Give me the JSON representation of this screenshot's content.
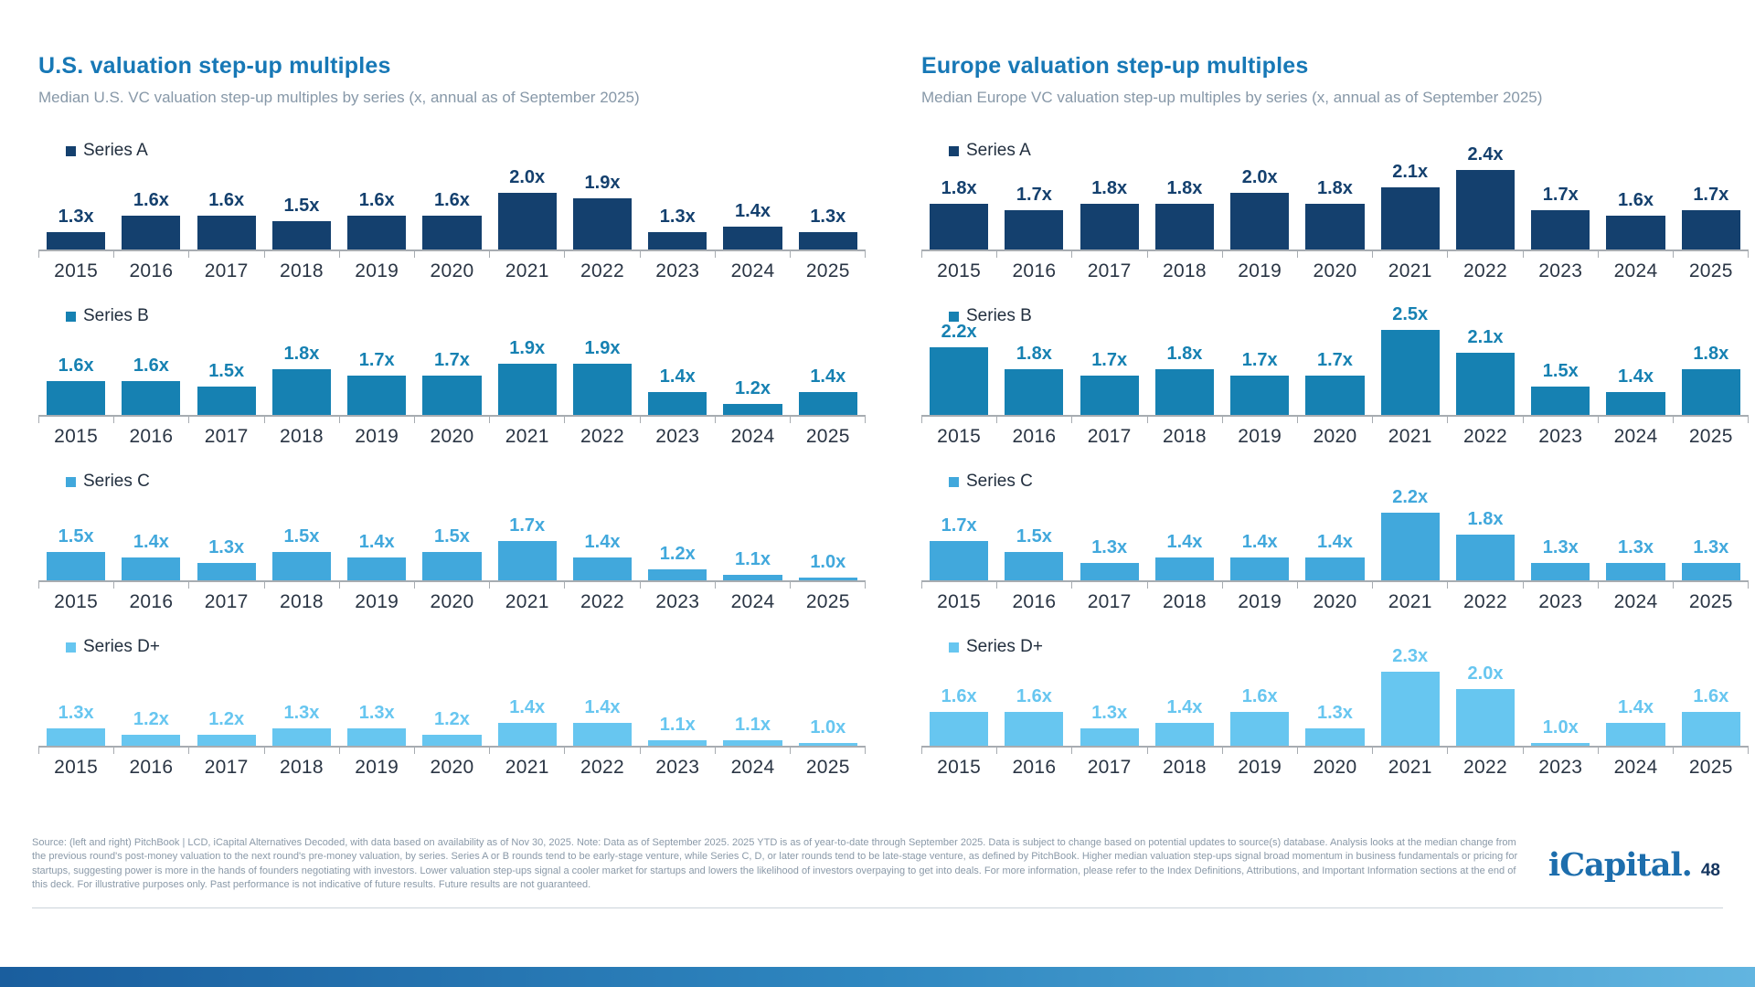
{
  "slide": {
    "footer": {
      "source_text": "Source: (left and right) PitchBook | LCD, iCapital Alternatives Decoded, with data based on availability as of Nov 30, 2025. Note: Data as of September 2025. 2025 YTD is as of year-to-date through September 2025. Data is subject to change based on potential updates to source(s) database. Analysis looks at the median change from the previous round's post-money valuation to the next round's pre-money valuation, by series. Series A or B rounds tend to be early-stage venture, while Series C, D, or later rounds tend to be late-stage venture, as defined by PitchBook. Higher median valuation step-ups signal broad momentum in business fundamentals or pricing for startups, suggesting power is more in the hands of founders negotiating with investors. Lower valuation step-ups signal a cooler market for startups and lowers the likelihood of investors overpaying to get into deals. For more information, please refer to the Index Definitions, Attributions, and Important Information sections at the end of this deck. For illustrative purposes only. Past performance is not indicative of future results. Future results are not guaranteed."
    },
    "logo": {
      "text": "iCapital",
      "dot": ".",
      "page_number": "48"
    },
    "colors": {
      "title_blue": "#1778B6",
      "subtitle_gray": "#8798A8",
      "axis_gray": "#A7ACB1",
      "bottom_bar_start": "#1A5E9E",
      "bottom_bar_end": "#62B5E0"
    }
  },
  "chart_data": [
    {
      "type": "bar",
      "title": "U.S. valuation step-up multiples",
      "subtitle": "Median U.S. VC valuation step-up multiples by series (x, annual as of September 2025)",
      "categories": [
        "2015",
        "2016",
        "2017",
        "2018",
        "2019",
        "2020",
        "2021",
        "2022",
        "2023",
        "2024",
        "2025"
      ],
      "ylim": [
        1.0,
        2.6
      ],
      "value_suffix": "x",
      "legend_position": "top-left-per-series",
      "grid": false,
      "series": [
        {
          "name": "Series A",
          "color": "#14406E",
          "values": [
            1.3,
            1.6,
            1.6,
            1.5,
            1.6,
            1.6,
            2.0,
            1.9,
            1.3,
            1.4,
            1.3
          ],
          "labels": [
            "1.3x",
            "1.6x",
            "1.6x",
            "1.5x",
            "1.6x",
            "1.6x",
            "2.0x",
            "1.9x",
            "1.3x",
            "1.4x",
            "1.3x"
          ]
        },
        {
          "name": "Series B",
          "color": "#1681B2",
          "values": [
            1.6,
            1.6,
            1.5,
            1.8,
            1.7,
            1.7,
            1.9,
            1.9,
            1.4,
            1.2,
            1.4
          ],
          "labels": [
            "1.6x",
            "1.6x",
            "1.5x",
            "1.8x",
            "1.7x",
            "1.7x",
            "1.9x",
            "1.9x",
            "1.4x",
            "1.2x",
            "1.4x"
          ]
        },
        {
          "name": "Series C",
          "color": "#41A8DC",
          "values": [
            1.5,
            1.4,
            1.3,
            1.5,
            1.4,
            1.5,
            1.7,
            1.4,
            1.2,
            1.1,
            1.0
          ],
          "labels": [
            "1.5x",
            "1.4x",
            "1.3x",
            "1.5x",
            "1.4x",
            "1.5x",
            "1.7x",
            "1.4x",
            "1.2x",
            "1.1x",
            "1.0x"
          ]
        },
        {
          "name": "Series D+",
          "color": "#67C6F0",
          "values": [
            1.3,
            1.2,
            1.2,
            1.3,
            1.3,
            1.2,
            1.4,
            1.4,
            1.1,
            1.1,
            1.0
          ],
          "labels": [
            "1.3x",
            "1.2x",
            "1.2x",
            "1.3x",
            "1.3x",
            "1.2x",
            "1.4x",
            "1.4x",
            "1.1x",
            "1.1x",
            "1.0x"
          ]
        }
      ]
    },
    {
      "type": "bar",
      "title": "Europe valuation step-up multiples",
      "subtitle": "Median Europe VC valuation step-up multiples by series (x, annual as of September 2025)",
      "categories": [
        "2015",
        "2016",
        "2017",
        "2018",
        "2019",
        "2020",
        "2021",
        "2022",
        "2023",
        "2024",
        "2025"
      ],
      "ylim": [
        1.0,
        2.6
      ],
      "value_suffix": "x",
      "legend_position": "top-left-per-series",
      "grid": false,
      "series": [
        {
          "name": "Series A",
          "color": "#14406E",
          "values": [
            1.8,
            1.7,
            1.8,
            1.8,
            2.0,
            1.8,
            2.1,
            2.4,
            1.7,
            1.6,
            1.7
          ],
          "labels": [
            "1.8x",
            "1.7x",
            "1.8x",
            "1.8x",
            "2.0x",
            "1.8x",
            "2.1x",
            "2.4x",
            "1.7x",
            "1.6x",
            "1.7x"
          ]
        },
        {
          "name": "Series B",
          "color": "#1681B2",
          "values": [
            2.2,
            1.8,
            1.7,
            1.8,
            1.7,
            1.7,
            2.5,
            2.1,
            1.5,
            1.4,
            1.8
          ],
          "labels": [
            "2.2x",
            "1.8x",
            "1.7x",
            "1.8x",
            "1.7x",
            "1.7x",
            "2.5x",
            "2.1x",
            "1.5x",
            "1.4x",
            "1.8x"
          ]
        },
        {
          "name": "Series C",
          "color": "#41A8DC",
          "values": [
            1.7,
            1.5,
            1.3,
            1.4,
            1.4,
            1.4,
            2.2,
            1.8,
            1.3,
            1.3,
            1.3
          ],
          "labels": [
            "1.7x",
            "1.5x",
            "1.3x",
            "1.4x",
            "1.4x",
            "1.4x",
            "2.2x",
            "1.8x",
            "1.3x",
            "1.3x",
            "1.3x"
          ]
        },
        {
          "name": "Series D+",
          "color": "#67C6F0",
          "values": [
            1.6,
            1.6,
            1.3,
            1.4,
            1.6,
            1.3,
            2.3,
            2.0,
            1.0,
            1.4,
            1.6
          ],
          "labels": [
            "1.6x",
            "1.6x",
            "1.3x",
            "1.4x",
            "1.6x",
            "1.3x",
            "2.3x",
            "2.0x",
            "1.0x",
            "1.4x",
            "1.6x"
          ]
        }
      ]
    }
  ]
}
